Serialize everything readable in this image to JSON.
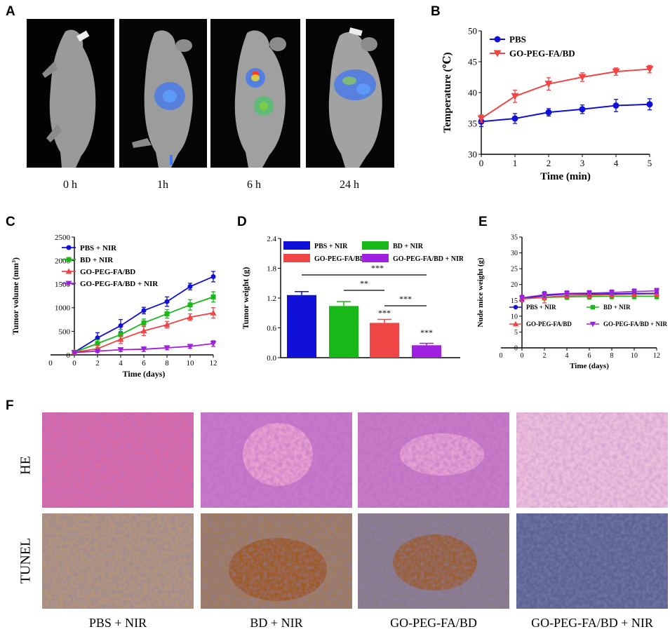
{
  "panels": {
    "A": "A",
    "B": "B",
    "C": "C",
    "D": "D",
    "E": "E",
    "F": "F"
  },
  "panel_a": {
    "time_labels": [
      "0 h",
      "1h",
      "6 h",
      "24 h"
    ]
  },
  "panel_f": {
    "row_labels": [
      "HE",
      "TUNEL"
    ],
    "group_labels": [
      "PBS + NIR",
      "BD + NIR",
      "GO-PEG-FA/BD",
      "GO-PEG-FA/BD + NIR"
    ]
  },
  "colors": {
    "blue": "#1010d8",
    "red": "#f04545",
    "green": "#18b818",
    "purple": "#a020e0"
  },
  "chart_data": [
    {
      "id": "B",
      "type": "line",
      "xlabel": "Time (min)",
      "ylabel": "Temperature (℃)",
      "x": [
        0,
        1,
        2,
        3,
        4,
        5
      ],
      "xlim": [
        0,
        5
      ],
      "ylim": [
        30,
        50
      ],
      "xticks": [
        0,
        1,
        2,
        3,
        4,
        5
      ],
      "yticks": [
        30,
        35,
        40,
        45,
        50
      ],
      "series": [
        {
          "name": "PBS",
          "values": [
            35.3,
            35.8,
            36.8,
            37.3,
            37.9,
            38.1
          ],
          "err": [
            0.8,
            0.8,
            0.6,
            0.7,
            1.0,
            0.9
          ],
          "color": "#1010d8",
          "marker": "circle"
        },
        {
          "name": "GO-PEG-FA/BD",
          "values": [
            35.8,
            39.4,
            41.4,
            42.5,
            43.4,
            43.8
          ],
          "err": [
            0.6,
            1.0,
            1.0,
            0.7,
            0.6,
            0.6
          ],
          "color": "#f04545",
          "marker": "triangle-down"
        }
      ],
      "legend": "top-left"
    },
    {
      "id": "C",
      "type": "line",
      "xlabel": "Time (days)",
      "ylabel": "Tumor volume (mm3)",
      "x": [
        0,
        2,
        4,
        6,
        8,
        10,
        12
      ],
      "xlim": [
        0,
        12
      ],
      "ylim": [
        0,
        2500
      ],
      "xticks": [
        0,
        2,
        4,
        6,
        8,
        10,
        12
      ],
      "yticks": [
        0,
        500,
        1000,
        1500,
        2000,
        2500
      ],
      "series": [
        {
          "name": "PBS + NIR",
          "values": [
            55,
            360,
            620,
            940,
            1130,
            1450,
            1660
          ],
          "err": [
            20,
            110,
            130,
            70,
            100,
            70,
            110
          ],
          "color": "#1010d8",
          "marker": "circle"
        },
        {
          "name": "BD + NIR",
          "values": [
            55,
            240,
            430,
            680,
            870,
            1060,
            1230
          ],
          "err": [
            20,
            80,
            110,
            80,
            90,
            110,
            110
          ],
          "color": "#18b818",
          "marker": "square"
        },
        {
          "name": "GO-PEG-FA/BD",
          "values": [
            55,
            130,
            330,
            510,
            640,
            800,
            890
          ],
          "err": [
            20,
            70,
            90,
            100,
            70,
            70,
            110
          ],
          "color": "#f04545",
          "marker": "triangle-up"
        },
        {
          "name": "GO-PEG-FA/BD + NIR",
          "values": [
            50,
            80,
            110,
            120,
            150,
            180,
            240
          ],
          "err": [
            15,
            30,
            40,
            50,
            40,
            40,
            60
          ],
          "color": "#a020e0",
          "marker": "triangle-down"
        }
      ],
      "legend": "top-left"
    },
    {
      "id": "D",
      "type": "bar",
      "ylabel": "Tumor weight (g)",
      "categories": [
        "PBS + NIR",
        "BD + NIR",
        "GO-PEG-FA/BD",
        "GO-PEG-FA/BD + NIR"
      ],
      "values": [
        1.26,
        1.04,
        0.7,
        0.25
      ],
      "err": [
        0.07,
        0.09,
        0.07,
        0.04
      ],
      "colors": [
        "#1010d8",
        "#18b818",
        "#f04545",
        "#a020e0"
      ],
      "ylim": [
        0,
        2.4
      ],
      "yticks": [
        "0.0",
        "0.6",
        "1.2",
        "1.8",
        "2.4"
      ],
      "significance": [
        "***",
        "**",
        "***",
        "***",
        "***"
      ],
      "legend": "top"
    },
    {
      "id": "E",
      "type": "line",
      "xlabel": "Time (days)",
      "ylabel": "Nude mice weight (g)",
      "x": [
        0,
        2,
        4,
        6,
        8,
        10,
        12
      ],
      "xlim": [
        0,
        12
      ],
      "ylim": [
        0,
        35
      ],
      "xticks": [
        0,
        2,
        4,
        6,
        8,
        10,
        12
      ],
      "yticks": [
        0,
        5,
        10,
        15,
        20,
        25,
        30,
        35
      ],
      "series": [
        {
          "name": "PBS + NIR",
          "values": [
            15.6,
            16.5,
            17.0,
            17.0,
            17.1,
            17.2,
            17.2
          ],
          "err": [
            1.0,
            1.0,
            0.8,
            0.8,
            0.8,
            0.8,
            0.8
          ],
          "color": "#1010d8",
          "marker": "circle"
        },
        {
          "name": "BD + NIR",
          "values": [
            15.5,
            15.9,
            16.1,
            16.2,
            16.3,
            16.3,
            16.3
          ],
          "err": [
            0.8,
            0.8,
            0.8,
            0.8,
            0.8,
            0.8,
            0.8
          ],
          "color": "#18b818",
          "marker": "square"
        },
        {
          "name": "GO-PEG-FA/BD",
          "values": [
            15.4,
            16.0,
            16.5,
            16.6,
            16.8,
            16.9,
            17.0
          ],
          "err": [
            0.8,
            1.8,
            0.8,
            0.8,
            0.8,
            0.8,
            0.8
          ],
          "color": "#f04545",
          "marker": "triangle-up"
        },
        {
          "name": "GO-PEG-FA/BD + NIR",
          "values": [
            15.8,
            16.8,
            17.2,
            17.3,
            17.5,
            17.8,
            18.0
          ],
          "err": [
            0.8,
            0.9,
            0.8,
            0.8,
            0.8,
            0.8,
            0.8
          ],
          "color": "#a020e0",
          "marker": "triangle-down"
        }
      ],
      "legend": "bottom"
    }
  ]
}
